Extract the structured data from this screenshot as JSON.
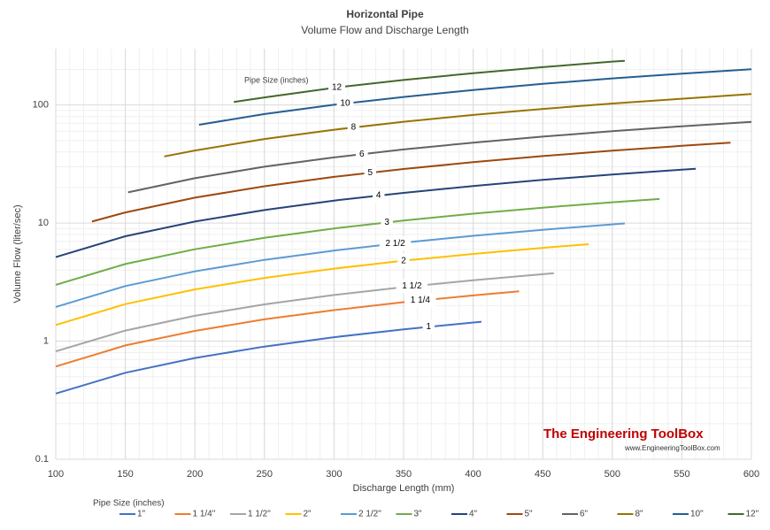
{
  "chart_data": {
    "type": "line",
    "title": "Horizontal Pipe",
    "subtitle": "Volume  Flow  and Discharge Length",
    "x_label": "Discharge Length (mm)",
    "y_label": "Volume Flow (liter/sec)",
    "legend_title": "Pipe Size (inches)",
    "annotation_title": "Pipe Size (inches)",
    "watermark": "The Engineering ToolBox",
    "watermark_url": "www.EngineeringToolBox.com",
    "xlim": [
      100,
      600
    ],
    "xticks": [
      100,
      150,
      200,
      250,
      300,
      350,
      400,
      450,
      500,
      550,
      600
    ],
    "ylim": [
      0.1,
      300
    ],
    "yticks": [
      0.1,
      1,
      10,
      100
    ],
    "log_y": true,
    "grid": true,
    "legend": "bottom",
    "series": [
      {
        "name": "1\"",
        "label": "1",
        "color": "#4472c4",
        "x": [
          100,
          150,
          200,
          250,
          300,
          350,
          406
        ],
        "values": [
          0.36,
          0.54,
          0.72,
          0.9,
          1.08,
          1.26,
          1.46
        ]
      },
      {
        "name": "1 1/4\"",
        "label": "1 1/4",
        "color": "#ed7d31",
        "x": [
          100,
          150,
          200,
          250,
          300,
          350,
          400,
          433
        ],
        "values": [
          0.61,
          0.92,
          1.22,
          1.53,
          1.83,
          2.14,
          2.44,
          2.64
        ]
      },
      {
        "name": "1 1/2\"",
        "label": "1 1/2",
        "color": "#a5a5a5",
        "x": [
          100,
          150,
          200,
          250,
          300,
          350,
          400,
          450,
          458
        ],
        "values": [
          0.82,
          1.23,
          1.64,
          2.05,
          2.46,
          2.87,
          3.28,
          3.69,
          3.76
        ]
      },
      {
        "name": "2\"",
        "label": "2",
        "color": "#ffc000",
        "x": [
          100,
          150,
          200,
          250,
          300,
          350,
          400,
          450,
          483
        ],
        "values": [
          1.37,
          2.06,
          2.74,
          3.43,
          4.11,
          4.8,
          5.48,
          6.17,
          6.62
        ]
      },
      {
        "name": "2 1/2\"",
        "label": "2 1/2",
        "color": "#5b9bd5",
        "x": [
          100,
          150,
          200,
          250,
          300,
          350,
          400,
          450,
          500,
          509
        ],
        "values": [
          1.95,
          2.93,
          3.9,
          4.88,
          5.85,
          6.83,
          7.8,
          8.78,
          9.75,
          9.93
        ]
      },
      {
        "name": "3\"",
        "label": "3",
        "color": "#70ad47",
        "x": [
          100,
          150,
          200,
          250,
          300,
          350,
          400,
          450,
          500,
          534
        ],
        "values": [
          3,
          4.5,
          6,
          7.5,
          9,
          10.5,
          12,
          13.5,
          15,
          16
        ]
      },
      {
        "name": "4\"",
        "label": "4",
        "color": "#264478",
        "x": [
          100,
          150,
          200,
          250,
          300,
          350,
          400,
          450,
          500,
          550,
          560
        ],
        "values": [
          5.15,
          7.73,
          10.3,
          12.9,
          15.5,
          18,
          20.6,
          23.2,
          25.8,
          28.3,
          28.8
        ]
      },
      {
        "name": "5\"",
        "label": "5",
        "color": "#9e480e",
        "x": [
          126,
          150,
          200,
          250,
          300,
          350,
          400,
          450,
          500,
          550,
          585
        ],
        "values": [
          10.3,
          12.3,
          16.4,
          20.5,
          24.6,
          28.7,
          32.8,
          36.9,
          41,
          45.1,
          48
        ]
      },
      {
        "name": "6\"",
        "label": "6",
        "color": "#636363",
        "x": [
          152,
          200,
          250,
          300,
          350,
          400,
          450,
          500,
          550,
          600
        ],
        "values": [
          18.2,
          24,
          30,
          36,
          42,
          48,
          54,
          60,
          66,
          72
        ]
      },
      {
        "name": "8\"",
        "label": "8",
        "color": "#997300",
        "x": [
          178,
          200,
          250,
          300,
          350,
          400,
          450,
          500,
          550,
          600
        ],
        "values": [
          36.7,
          41.2,
          51.5,
          61.8,
          72.1,
          82.4,
          92.7,
          103,
          113,
          124
        ]
      },
      {
        "name": "10\"",
        "label": "10",
        "color": "#255e91",
        "x": [
          203,
          250,
          300,
          350,
          400,
          450,
          500,
          550,
          600
        ],
        "values": [
          68,
          83.8,
          100.5,
          117,
          134,
          151,
          168,
          184,
          201
        ]
      },
      {
        "name": "12\"",
        "label": "12",
        "color": "#43682b",
        "x": [
          228,
          250,
          300,
          350,
          400,
          450,
          500,
          509
        ],
        "values": [
          106,
          116,
          140,
          163,
          186,
          209,
          233,
          237
        ]
      }
    ]
  }
}
